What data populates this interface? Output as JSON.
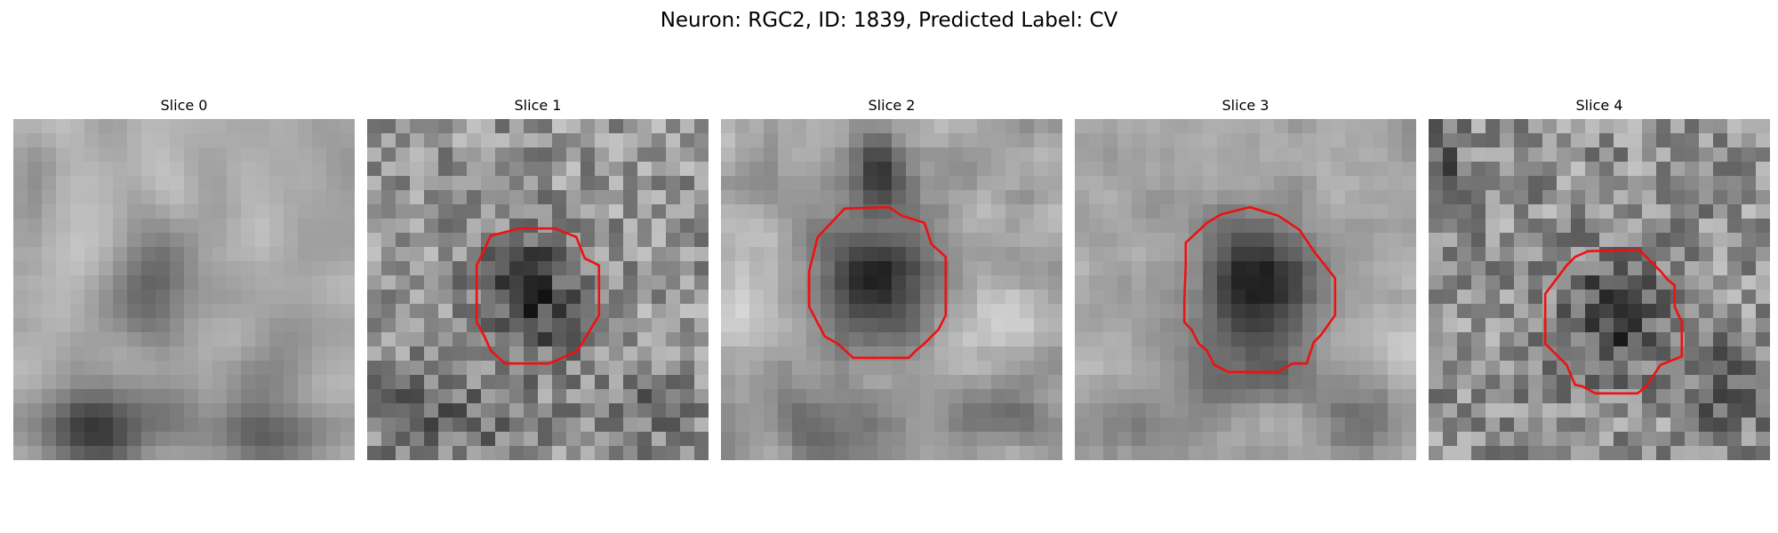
{
  "figure": {
    "title": "Neuron: RGC2, ID: 1839, Predicted Label: CV"
  },
  "slices": [
    {
      "label": "Slice 0",
      "has_contour": false
    },
    {
      "label": "Slice 1",
      "has_contour": true
    },
    {
      "label": "Slice 2",
      "has_contour": true
    },
    {
      "label": "Slice 3",
      "has_contour": true
    },
    {
      "label": "Slice 4",
      "has_contour": true
    }
  ],
  "colors": {
    "contour": "#ee1111",
    "background": "#ffffff"
  }
}
